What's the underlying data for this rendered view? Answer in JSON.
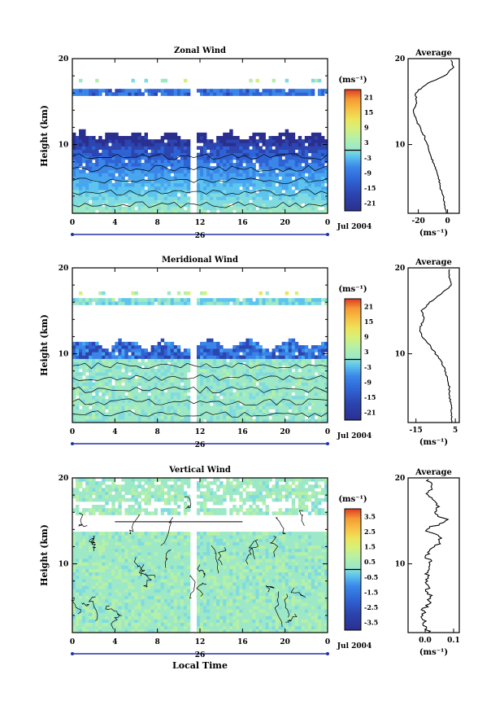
{
  "chart_data": [
    {
      "type": "heatmap",
      "title": "Zonal Wind",
      "ylabel": "Height (km)",
      "ylim": [
        2,
        20
      ],
      "yticks": [
        "20",
        "10"
      ],
      "xlim": [
        0,
        24
      ],
      "xticks": [
        "0",
        "4",
        "8",
        "12",
        "16",
        "20",
        "0"
      ],
      "date_day": "26",
      "date_label": "Jul 2004",
      "colorbar": {
        "unit": "(ms⁻¹)",
        "ticks": [
          "21",
          "15",
          "9",
          "3",
          "-3",
          "-9",
          "-15",
          "-21"
        ],
        "range": [
          -24,
          24
        ],
        "zero_line": 0
      },
      "profile": {
        "title": "Average",
        "xticks": [
          "-20",
          "0"
        ],
        "xlim": [
          -27,
          8
        ],
        "unit": "(ms⁻¹)",
        "y": [
          2,
          3,
          4,
          5,
          6,
          7,
          8,
          9,
          10,
          11,
          12,
          13,
          14,
          15,
          16,
          17,
          18,
          19,
          20
        ],
        "values": [
          -1,
          -2,
          -3,
          -5,
          -6,
          -8,
          -10,
          -12,
          -14,
          -16,
          -19,
          -22,
          -23,
          -21,
          -22,
          -15,
          -2,
          4,
          2
        ]
      }
    },
    {
      "type": "heatmap",
      "title": "Meridional Wind",
      "ylabel": "Height (km)",
      "ylim": [
        2,
        20
      ],
      "yticks": [
        "20",
        "10"
      ],
      "xlim": [
        0,
        24
      ],
      "xticks": [
        "0",
        "4",
        "8",
        "12",
        "16",
        "20",
        "0"
      ],
      "date_day": "26",
      "date_label": "Jul 2004",
      "colorbar": {
        "unit": "(ms⁻¹)",
        "ticks": [
          "21",
          "15",
          "9",
          "3",
          "-3",
          "-9",
          "-15",
          "-21"
        ],
        "range": [
          -24,
          24
        ],
        "zero_line": 0
      },
      "profile": {
        "title": "Average",
        "xticks": [
          "-15",
          "5"
        ],
        "xlim": [
          -19,
          7
        ],
        "unit": "(ms⁻¹)",
        "y": [
          2,
          3,
          4,
          5,
          6,
          7,
          8,
          9,
          10,
          11,
          12,
          13,
          14,
          15,
          16,
          17,
          18,
          19,
          20
        ],
        "values": [
          3,
          3,
          3,
          2,
          2,
          1,
          0,
          -2,
          -5,
          -8,
          -12,
          -13,
          -11,
          -12,
          -8,
          -2,
          3,
          2,
          2
        ]
      }
    },
    {
      "type": "heatmap",
      "title": "Vertical Wind",
      "xlabel": "Local Time",
      "ylabel": "Height (km)",
      "ylim": [
        2,
        20
      ],
      "yticks": [
        "20",
        "10"
      ],
      "xlim": [
        0,
        24
      ],
      "xticks": [
        "0",
        "4",
        "8",
        "12",
        "16",
        "20",
        "0"
      ],
      "date_day": "26",
      "date_label": "Jul 2004",
      "colorbar": {
        "unit": "(ms⁻¹)",
        "ticks": [
          "3.5",
          "2.5",
          "1.5",
          "0.5",
          "-0.5",
          "-1.5",
          "-2.5",
          "-3.5"
        ],
        "range": [
          -4,
          4
        ],
        "zero_line": 0
      },
      "profile": {
        "title": "Average",
        "xticks": [
          "0.0",
          "0.1"
        ],
        "xlim": [
          -0.06,
          0.12
        ],
        "unit": "(ms⁻¹)",
        "y": [
          2,
          3,
          4,
          5,
          6,
          7,
          8,
          9,
          10,
          11,
          12,
          13,
          14,
          15,
          16,
          17,
          18,
          19,
          20
        ],
        "values": [
          0.01,
          0.0,
          -0.01,
          0.0,
          0.02,
          0.01,
          0.0,
          0.01,
          0.02,
          0.0,
          0.04,
          0.06,
          0.0,
          0.08,
          0.03,
          0.05,
          0.01,
          0.02,
          0.0
        ]
      }
    }
  ],
  "colors": {
    "scale": [
      "#2a2f8f",
      "#2c45b0",
      "#2f63d4",
      "#3a86e8",
      "#47a6ef",
      "#5cc4ee",
      "#7fdbe0",
      "#9de8c6",
      "#b5f0a8",
      "#d5f07a",
      "#eee35a",
      "#f7c044",
      "#f49a34",
      "#ec6a2c",
      "#df3b26"
    ],
    "axis": "#000000",
    "date_bar": "#2233aa"
  }
}
